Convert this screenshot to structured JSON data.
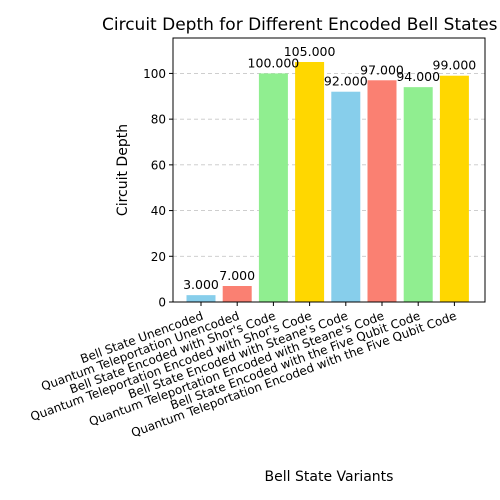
{
  "chart_data": {
    "type": "bar",
    "title": "Circuit Depth for Different Encoded Bell States",
    "xlabel": "Bell State Variants",
    "ylabel": "Circuit Depth",
    "categories": [
      "Bell State Unencoded",
      "Quantum Teleportation Unencoded",
      "Bell State Encoded with Shor's Code",
      "Quantum Teleportation Encoded with Shor's Code",
      "Bell State Encoded with Steane's Code",
      "Quantum Teleportation Encoded with Steane's Code",
      "Bell State Encoded with the Five Qubit Code",
      "Quantum Teleportation Encoded with the Five Qubit Code"
    ],
    "values": [
      3,
      7,
      100,
      105,
      92,
      97,
      94,
      99
    ],
    "value_labels": [
      "3.000",
      "7.000",
      "100.000",
      "105.000",
      "92.000",
      "97.000",
      "94.000",
      "99.000"
    ],
    "colors": [
      "#87ceeb",
      "#fa8072",
      "#90ee90",
      "#ffd700",
      "#87ceeb",
      "#fa8072",
      "#90ee90",
      "#ffd700"
    ],
    "yticks": [
      0,
      20,
      40,
      60,
      80,
      100
    ],
    "ylim": [
      0,
      115.5
    ],
    "grid": "y-dashed",
    "legend": "none"
  }
}
